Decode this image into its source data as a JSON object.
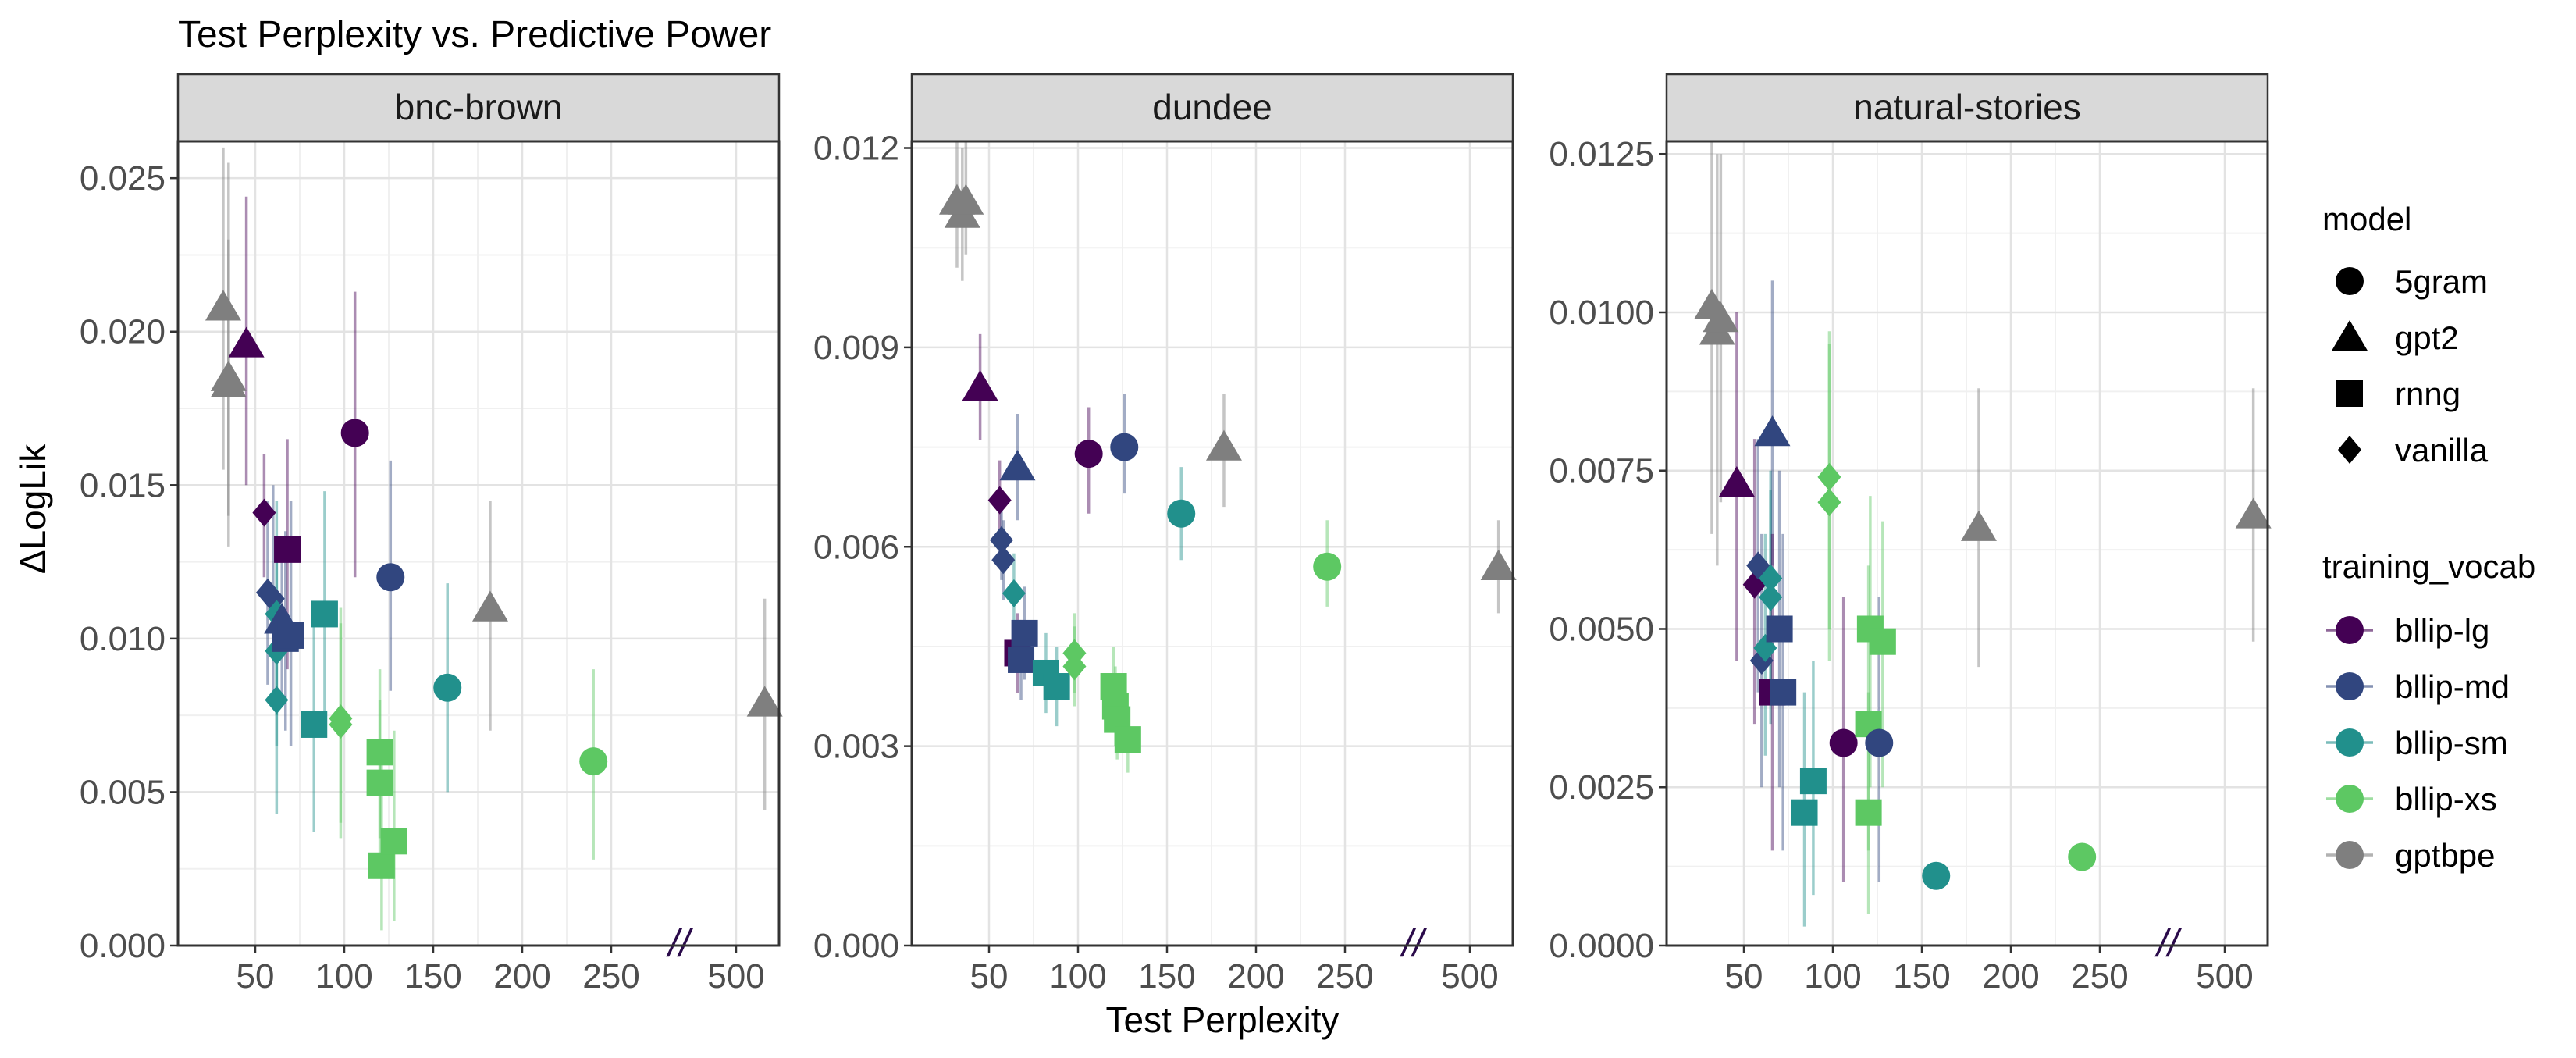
{
  "chart_data": {
    "type": "scatter",
    "title": "Test Perplexity vs. Predictive Power",
    "xlabel": "Test Perplexity",
    "ylabel": "ΔLogLik",
    "x_axis": {
      "scale": "broken",
      "ticks_lower": [
        50,
        100,
        150,
        200,
        250
      ],
      "ticks_upper": [
        500
      ],
      "lower_range": [
        25,
        275
      ],
      "upper_range": [
        400,
        600
      ],
      "break_symbol": "//"
    },
    "grid": true,
    "legend_placement": "right",
    "legends": {
      "model": {
        "title": "model",
        "entries": [
          {
            "label": "5gram",
            "shape": "circle"
          },
          {
            "label": "gpt2",
            "shape": "triangle"
          },
          {
            "label": "rnng",
            "shape": "square"
          },
          {
            "label": "vanilla",
            "shape": "diamond"
          }
        ]
      },
      "training_vocab": {
        "title": "training_vocab",
        "entries": [
          {
            "label": "bllip-lg",
            "color": "#440154"
          },
          {
            "label": "bllip-md",
            "color": "#31467f"
          },
          {
            "label": "bllip-sm",
            "color": "#21908c"
          },
          {
            "label": "bllip-xs",
            "color": "#5dc863"
          },
          {
            "label": "gptbpe",
            "color": "#7f7f7f"
          }
        ]
      }
    },
    "panels": [
      {
        "name": "bnc-brown",
        "ylim": [
          0,
          0.0262
        ],
        "yticks": [
          "0.000",
          "0.005",
          "0.010",
          "0.015",
          "0.020",
          "0.025"
        ],
        "ytick_values": [
          0,
          0.005,
          0.01,
          0.015,
          0.02,
          0.025
        ],
        "points": [
          {
            "x": 32,
            "y": 0.0208,
            "lo": 0.0155,
            "hi": 0.026,
            "model": "gpt2",
            "vocab": "gptbpe"
          },
          {
            "x": 35,
            "y": 0.0185,
            "lo": 0.013,
            "hi": 0.0255,
            "model": "gpt2",
            "vocab": "gptbpe"
          },
          {
            "x": 35,
            "y": 0.0183,
            "lo": 0.014,
            "hi": 0.023,
            "model": "gpt2",
            "vocab": "gptbpe"
          },
          {
            "x": 45,
            "y": 0.0196,
            "lo": 0.015,
            "hi": 0.0244,
            "model": "gpt2",
            "vocab": "bllip-lg"
          },
          {
            "x": 55,
            "y": 0.0141,
            "lo": 0.012,
            "hi": 0.016,
            "model": "vanilla",
            "vocab": "bllip-lg"
          },
          {
            "x": 57,
            "y": 0.0115,
            "lo": 0.0085,
            "hi": 0.0145,
            "model": "vanilla",
            "vocab": "bllip-md"
          },
          {
            "x": 60,
            "y": 0.0113,
            "lo": 0.008,
            "hi": 0.015,
            "model": "vanilla",
            "vocab": "bllip-md"
          },
          {
            "x": 62,
            "y": 0.0108,
            "lo": 0.0075,
            "hi": 0.0145,
            "model": "vanilla",
            "vocab": "bllip-sm"
          },
          {
            "x": 62,
            "y": 0.0096,
            "lo": 0.0065,
            "hi": 0.013,
            "model": "vanilla",
            "vocab": "bllip-sm"
          },
          {
            "x": 62,
            "y": 0.008,
            "lo": 0.0043,
            "hi": 0.0115,
            "model": "vanilla",
            "vocab": "bllip-sm"
          },
          {
            "x": 65,
            "y": 0.0106,
            "lo": 0.008,
            "hi": 0.013,
            "model": "gpt2",
            "vocab": "bllip-md"
          },
          {
            "x": 68,
            "y": 0.0129,
            "lo": 0.009,
            "hi": 0.0165,
            "model": "rnng",
            "vocab": "bllip-lg"
          },
          {
            "x": 67,
            "y": 0.01,
            "lo": 0.007,
            "hi": 0.0135,
            "model": "rnng",
            "vocab": "bllip-md"
          },
          {
            "x": 70,
            "y": 0.0101,
            "lo": 0.0065,
            "hi": 0.0145,
            "model": "rnng",
            "vocab": "bllip-md"
          },
          {
            "x": 83,
            "y": 0.0072,
            "lo": 0.0037,
            "hi": 0.0106,
            "model": "rnng",
            "vocab": "bllip-sm"
          },
          {
            "x": 89,
            "y": 0.0108,
            "lo": 0.007,
            "hi": 0.0148,
            "model": "rnng",
            "vocab": "bllip-sm"
          },
          {
            "x": 98,
            "y": 0.0074,
            "lo": 0.0035,
            "hi": 0.011,
            "model": "vanilla",
            "vocab": "bllip-xs"
          },
          {
            "x": 98,
            "y": 0.0072,
            "lo": 0.004,
            "hi": 0.0105,
            "model": "vanilla",
            "vocab": "bllip-xs"
          },
          {
            "x": 106,
            "y": 0.0167,
            "lo": 0.012,
            "hi": 0.0213,
            "model": "5gram",
            "vocab": "bllip-lg"
          },
          {
            "x": 120,
            "y": 0.0063,
            "lo": 0.0035,
            "hi": 0.009,
            "model": "rnng",
            "vocab": "bllip-xs"
          },
          {
            "x": 120,
            "y": 0.0053,
            "lo": 0.0025,
            "hi": 0.008,
            "model": "rnng",
            "vocab": "bllip-xs"
          },
          {
            "x": 121,
            "y": 0.0026,
            "lo": 0.0005,
            "hi": 0.006,
            "model": "rnng",
            "vocab": "bllip-xs"
          },
          {
            "x": 128,
            "y": 0.0034,
            "lo": 0.0008,
            "hi": 0.007,
            "model": "rnng",
            "vocab": "bllip-xs"
          },
          {
            "x": 126,
            "y": 0.012,
            "lo": 0.0083,
            "hi": 0.0158,
            "model": "5gram",
            "vocab": "bllip-md"
          },
          {
            "x": 158,
            "y": 0.0084,
            "lo": 0.005,
            "hi": 0.0118,
            "model": "5gram",
            "vocab": "bllip-sm"
          },
          {
            "x": 182,
            "y": 0.011,
            "lo": 0.007,
            "hi": 0.0145,
            "model": "gpt2",
            "vocab": "gptbpe"
          },
          {
            "x": 240,
            "y": 0.006,
            "lo": 0.0028,
            "hi": 0.009,
            "model": "5gram",
            "vocab": "bllip-xs"
          },
          {
            "x": 578,
            "y": 0.0079,
            "lo": 0.0044,
            "hi": 0.0113,
            "model": "gpt2",
            "vocab": "gptbpe"
          }
        ]
      },
      {
        "name": "dundee",
        "ylim": [
          0,
          0.0121
        ],
        "yticks": [
          "0.000",
          "0.003",
          "0.006",
          "0.009",
          "0.012"
        ],
        "ytick_values": [
          0,
          0.003,
          0.006,
          0.009,
          0.012
        ],
        "points": [
          {
            "x": 32,
            "y": 0.0112,
            "lo": 0.0102,
            "hi": 0.0121,
            "model": "gpt2",
            "vocab": "gptbpe"
          },
          {
            "x": 35,
            "y": 0.011,
            "lo": 0.01,
            "hi": 0.012,
            "model": "gpt2",
            "vocab": "gptbpe"
          },
          {
            "x": 37,
            "y": 0.0112,
            "lo": 0.0104,
            "hi": 0.0121,
            "model": "gpt2",
            "vocab": "gptbpe"
          },
          {
            "x": 45,
            "y": 0.0084,
            "lo": 0.0076,
            "hi": 0.0092,
            "model": "gpt2",
            "vocab": "bllip-lg"
          },
          {
            "x": 56,
            "y": 0.0067,
            "lo": 0.006,
            "hi": 0.0073,
            "model": "vanilla",
            "vocab": "bllip-lg"
          },
          {
            "x": 57,
            "y": 0.0061,
            "lo": 0.0055,
            "hi": 0.0067,
            "model": "vanilla",
            "vocab": "bllip-md"
          },
          {
            "x": 58,
            "y": 0.0058,
            "lo": 0.0052,
            "hi": 0.0064,
            "model": "vanilla",
            "vocab": "bllip-md"
          },
          {
            "x": 64,
            "y": 0.0053,
            "lo": 0.0047,
            "hi": 0.0059,
            "model": "vanilla",
            "vocab": "bllip-sm"
          },
          {
            "x": 66,
            "y": 0.0072,
            "lo": 0.0064,
            "hi": 0.008,
            "model": "gpt2",
            "vocab": "bllip-md"
          },
          {
            "x": 66,
            "y": 0.0044,
            "lo": 0.0038,
            "hi": 0.005,
            "model": "rnng",
            "vocab": "bllip-lg"
          },
          {
            "x": 68,
            "y": 0.0043,
            "lo": 0.0037,
            "hi": 0.0049,
            "model": "rnng",
            "vocab": "bllip-md"
          },
          {
            "x": 70,
            "y": 0.0047,
            "lo": 0.004,
            "hi": 0.0054,
            "model": "rnng",
            "vocab": "bllip-md"
          },
          {
            "x": 82,
            "y": 0.0041,
            "lo": 0.0035,
            "hi": 0.0047,
            "model": "rnng",
            "vocab": "bllip-sm"
          },
          {
            "x": 88,
            "y": 0.0039,
            "lo": 0.0033,
            "hi": 0.0045,
            "model": "rnng",
            "vocab": "bllip-sm"
          },
          {
            "x": 98,
            "y": 0.0044,
            "lo": 0.0038,
            "hi": 0.005,
            "model": "vanilla",
            "vocab": "bllip-xs"
          },
          {
            "x": 98,
            "y": 0.0042,
            "lo": 0.0036,
            "hi": 0.0048,
            "model": "vanilla",
            "vocab": "bllip-xs"
          },
          {
            "x": 106,
            "y": 0.0074,
            "lo": 0.0065,
            "hi": 0.0081,
            "model": "5gram",
            "vocab": "bllip-lg"
          },
          {
            "x": 120,
            "y": 0.0039,
            "lo": 0.0033,
            "hi": 0.0045,
            "model": "rnng",
            "vocab": "bllip-xs"
          },
          {
            "x": 121,
            "y": 0.0036,
            "lo": 0.003,
            "hi": 0.0042,
            "model": "rnng",
            "vocab": "bllip-xs"
          },
          {
            "x": 122,
            "y": 0.0034,
            "lo": 0.0028,
            "hi": 0.004,
            "model": "rnng",
            "vocab": "bllip-xs"
          },
          {
            "x": 128,
            "y": 0.0031,
            "lo": 0.0026,
            "hi": 0.0036,
            "model": "rnng",
            "vocab": "bllip-xs"
          },
          {
            "x": 126,
            "y": 0.0075,
            "lo": 0.0068,
            "hi": 0.0083,
            "model": "5gram",
            "vocab": "bllip-md"
          },
          {
            "x": 158,
            "y": 0.0065,
            "lo": 0.0058,
            "hi": 0.0072,
            "model": "5gram",
            "vocab": "bllip-sm"
          },
          {
            "x": 182,
            "y": 0.0075,
            "lo": 0.0066,
            "hi": 0.0083,
            "model": "gpt2",
            "vocab": "gptbpe"
          },
          {
            "x": 240,
            "y": 0.0057,
            "lo": 0.0051,
            "hi": 0.0064,
            "model": "5gram",
            "vocab": "bllip-xs"
          },
          {
            "x": 578,
            "y": 0.0057,
            "lo": 0.005,
            "hi": 0.0064,
            "model": "gpt2",
            "vocab": "gptbpe"
          }
        ]
      },
      {
        "name": "natural-stories",
        "ylim": [
          0,
          0.0127
        ],
        "yticks": [
          "0.0000",
          "0.0025",
          "0.0050",
          "0.0075",
          "0.0100",
          "0.0125"
        ],
        "ytick_values": [
          0,
          0.0025,
          0.005,
          0.0075,
          0.01,
          0.0125
        ],
        "points": [
          {
            "x": 32,
            "y": 0.0101,
            "lo": 0.0065,
            "hi": 0.0127,
            "model": "gpt2",
            "vocab": "gptbpe"
          },
          {
            "x": 35,
            "y": 0.0097,
            "lo": 0.006,
            "hi": 0.0125,
            "model": "gpt2",
            "vocab": "gptbpe"
          },
          {
            "x": 37,
            "y": 0.0099,
            "lo": 0.007,
            "hi": 0.0125,
            "model": "gpt2",
            "vocab": "gptbpe"
          },
          {
            "x": 46,
            "y": 0.0073,
            "lo": 0.0045,
            "hi": 0.01,
            "model": "gpt2",
            "vocab": "bllip-lg"
          },
          {
            "x": 56,
            "y": 0.0057,
            "lo": 0.0035,
            "hi": 0.008,
            "model": "vanilla",
            "vocab": "bllip-lg"
          },
          {
            "x": 58,
            "y": 0.006,
            "lo": 0.004,
            "hi": 0.008,
            "model": "vanilla",
            "vocab": "bllip-md"
          },
          {
            "x": 60,
            "y": 0.0045,
            "lo": 0.0025,
            "hi": 0.0065,
            "model": "vanilla",
            "vocab": "bllip-md"
          },
          {
            "x": 62,
            "y": 0.0047,
            "lo": 0.003,
            "hi": 0.0065,
            "model": "vanilla",
            "vocab": "bllip-sm"
          },
          {
            "x": 65,
            "y": 0.0058,
            "lo": 0.0038,
            "hi": 0.0075,
            "model": "vanilla",
            "vocab": "bllip-sm"
          },
          {
            "x": 65,
            "y": 0.0055,
            "lo": 0.0035,
            "hi": 0.0072,
            "model": "vanilla",
            "vocab": "bllip-sm"
          },
          {
            "x": 66,
            "y": 0.0081,
            "lo": 0.006,
            "hi": 0.0105,
            "model": "gpt2",
            "vocab": "bllip-md"
          },
          {
            "x": 66,
            "y": 0.004,
            "lo": 0.0015,
            "hi": 0.0065,
            "model": "rnng",
            "vocab": "bllip-lg"
          },
          {
            "x": 70,
            "y": 0.005,
            "lo": 0.0025,
            "hi": 0.0075,
            "model": "rnng",
            "vocab": "bllip-md"
          },
          {
            "x": 72,
            "y": 0.004,
            "lo": 0.0015,
            "hi": 0.0065,
            "model": "rnng",
            "vocab": "bllip-md"
          },
          {
            "x": 84,
            "y": 0.0021,
            "lo": 0.0003,
            "hi": 0.004,
            "model": "rnng",
            "vocab": "bllip-sm"
          },
          {
            "x": 89,
            "y": 0.0026,
            "lo": 0.0008,
            "hi": 0.0045,
            "model": "rnng",
            "vocab": "bllip-sm"
          },
          {
            "x": 98,
            "y": 0.0074,
            "lo": 0.005,
            "hi": 0.0097,
            "model": "vanilla",
            "vocab": "bllip-xs"
          },
          {
            "x": 98,
            "y": 0.007,
            "lo": 0.0045,
            "hi": 0.0095,
            "model": "vanilla",
            "vocab": "bllip-xs"
          },
          {
            "x": 106,
            "y": 0.0032,
            "lo": 0.001,
            "hi": 0.0055,
            "model": "5gram",
            "vocab": "bllip-lg"
          },
          {
            "x": 121,
            "y": 0.005,
            "lo": 0.0025,
            "hi": 0.0071,
            "model": "rnng",
            "vocab": "bllip-xs"
          },
          {
            "x": 120,
            "y": 0.0035,
            "lo": 0.0015,
            "hi": 0.006,
            "model": "rnng",
            "vocab": "bllip-xs"
          },
          {
            "x": 120,
            "y": 0.0021,
            "lo": 0.0005,
            "hi": 0.004,
            "model": "rnng",
            "vocab": "bllip-xs"
          },
          {
            "x": 128,
            "y": 0.0048,
            "lo": 0.0025,
            "hi": 0.0067,
            "model": "rnng",
            "vocab": "bllip-xs"
          },
          {
            "x": 126,
            "y": 0.0032,
            "lo": 0.001,
            "hi": 0.0055,
            "model": "5gram",
            "vocab": "bllip-md"
          },
          {
            "x": 158,
            "y": 0.0011,
            "lo": 0.0011,
            "hi": 0.0011,
            "model": "5gram",
            "vocab": "bllip-sm"
          },
          {
            "x": 182,
            "y": 0.0066,
            "lo": 0.0044,
            "hi": 0.0088,
            "model": "gpt2",
            "vocab": "gptbpe"
          },
          {
            "x": 240,
            "y": 0.0014,
            "lo": 0.0014,
            "hi": 0.0014,
            "model": "5gram",
            "vocab": "bllip-xs"
          },
          {
            "x": 578,
            "y": 0.0068,
            "lo": 0.0048,
            "hi": 0.0088,
            "model": "gpt2",
            "vocab": "gptbpe"
          }
        ]
      }
    ]
  }
}
